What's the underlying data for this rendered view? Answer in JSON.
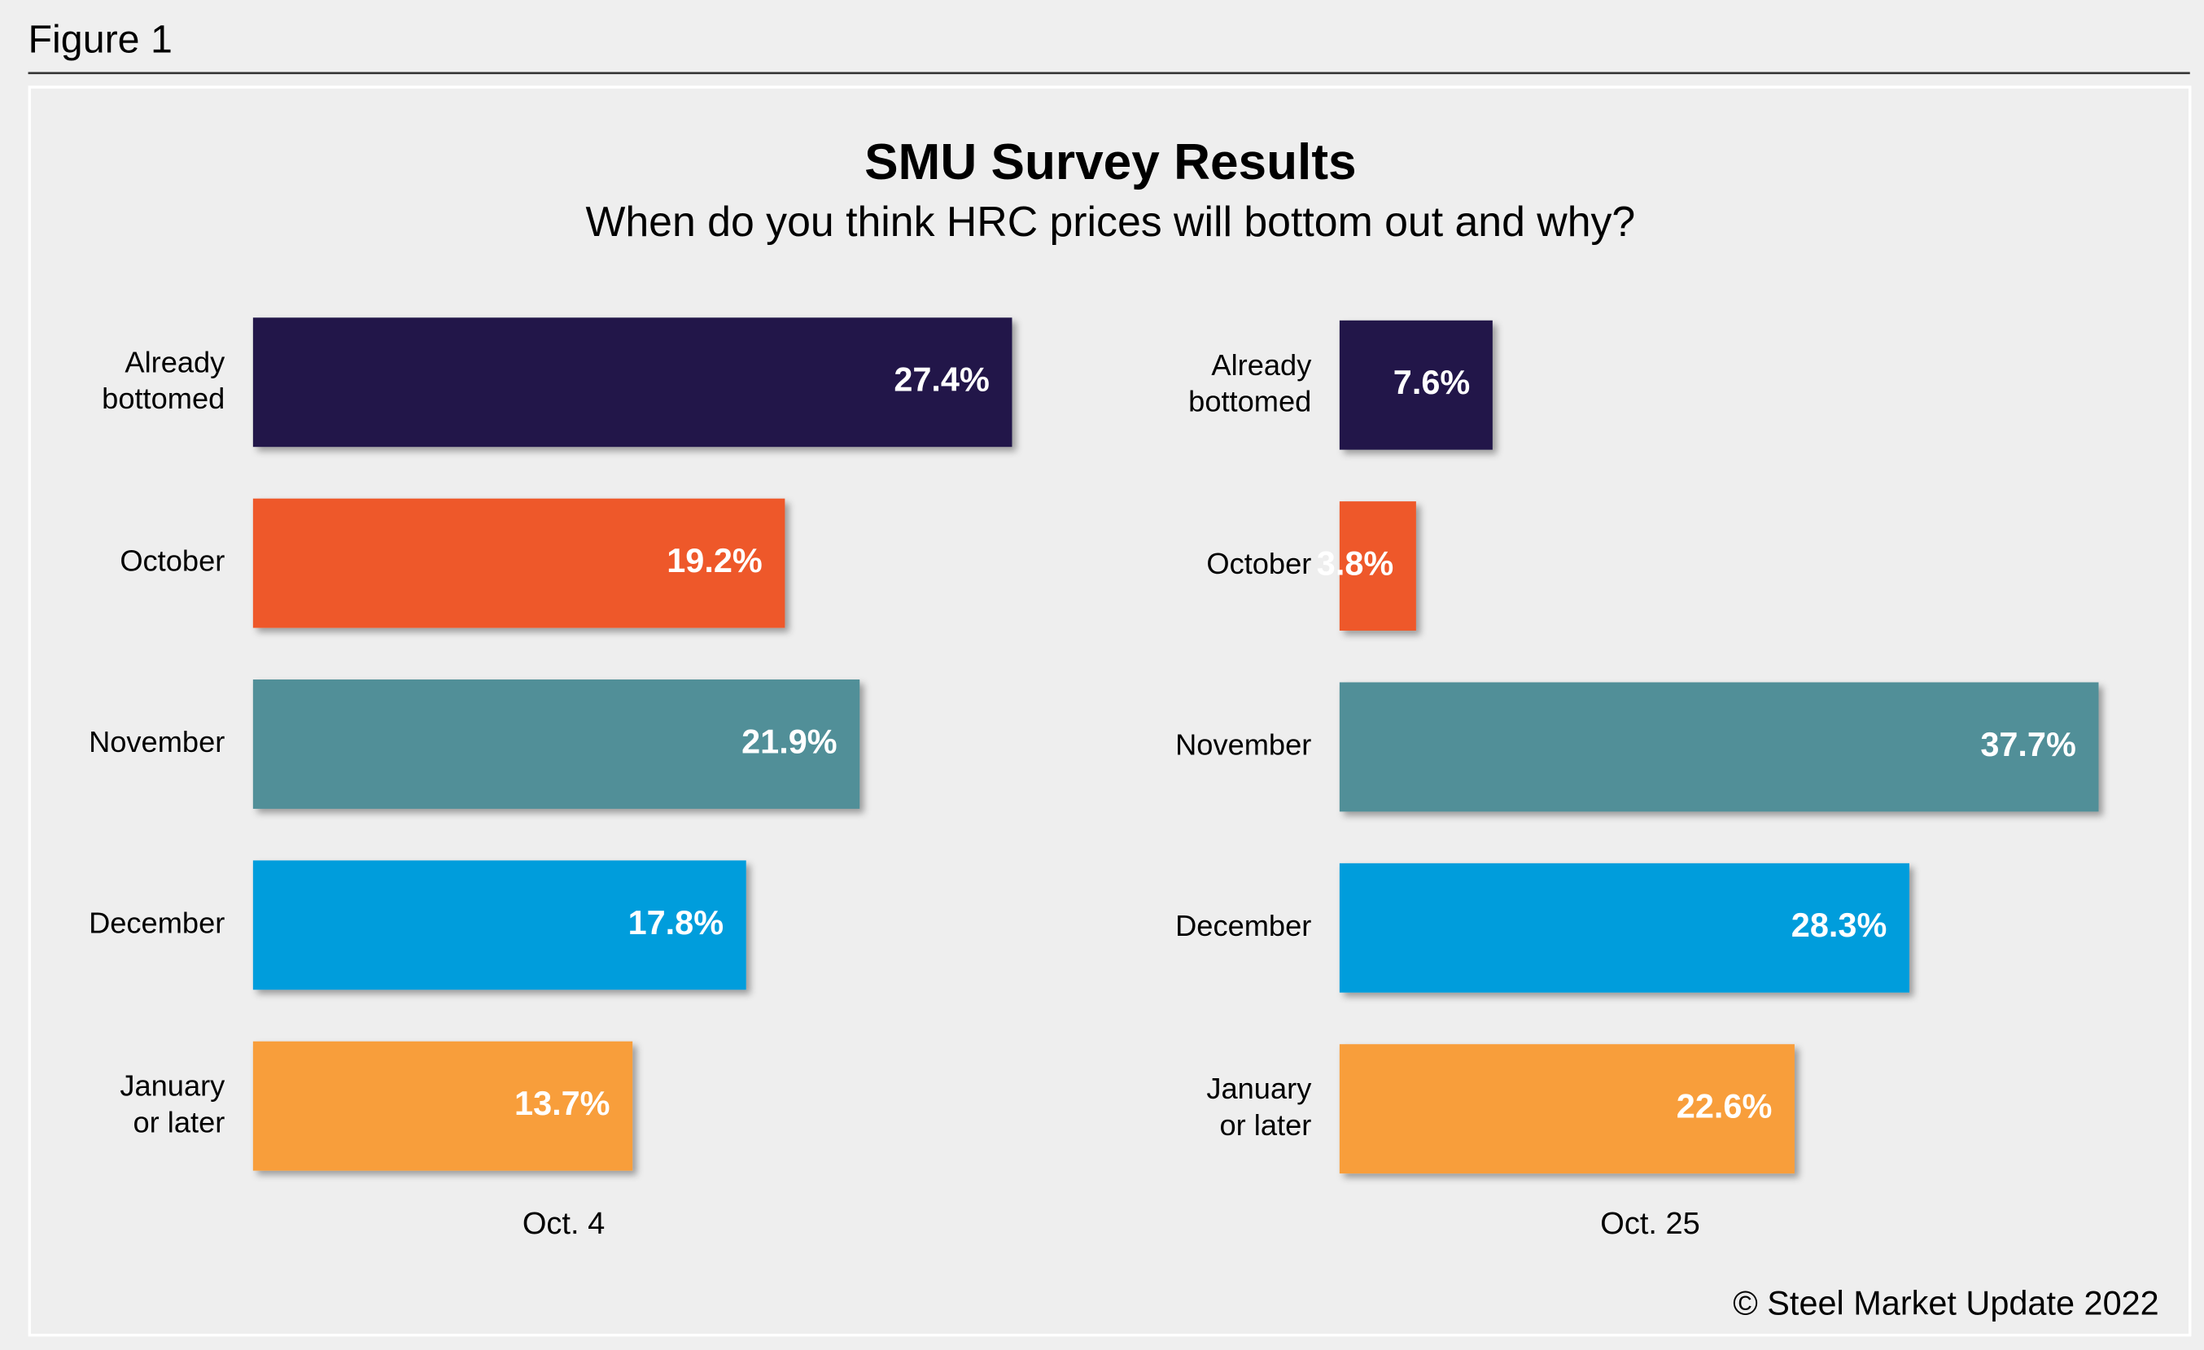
{
  "figure_label": "Figure 1",
  "title": "SMU Survey Results",
  "subtitle": "When do you think HRC prices will bottom out and why?",
  "copyright": "© Steel Market Update 2022",
  "chart_data": [
    {
      "type": "barh",
      "xlabel": "Oct. 4",
      "categories": [
        "Already\nbottomed",
        "October",
        "November",
        "December",
        "January\nor later"
      ],
      "values": [
        27.4,
        19.2,
        21.9,
        17.8,
        13.7
      ],
      "value_labels": [
        "27.4%",
        "19.2%",
        "21.9%",
        "17.8%",
        "13.7%"
      ],
      "colors": [
        "#20174a",
        "#ee5829",
        "#518f98",
        "#009ddc",
        "#f89e3b"
      ],
      "xlim": [
        0,
        27.4
      ]
    },
    {
      "type": "barh",
      "xlabel": "Oct. 25",
      "categories": [
        "Already\nbottomed",
        "October",
        "November",
        "December",
        "January\nor later"
      ],
      "values": [
        7.6,
        3.8,
        37.7,
        28.3,
        22.6
      ],
      "value_labels": [
        "7.6%",
        "3.8%",
        "37.7%",
        "28.3%",
        "22.6%"
      ],
      "colors": [
        "#20174a",
        "#ee5829",
        "#518f98",
        "#009ddc",
        "#f89e3b"
      ],
      "xlim": [
        0,
        37.7
      ]
    }
  ]
}
